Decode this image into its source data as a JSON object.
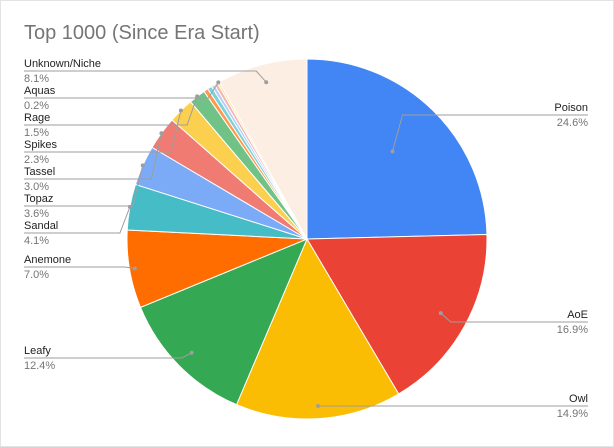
{
  "chart_data": {
    "type": "pie",
    "title": "Top 1000 (Since Era Start)",
    "slices": [
      {
        "label": "Poison",
        "value": 24.6,
        "pct_label": "24.6%",
        "color": "#4285f4"
      },
      {
        "label": "AoE",
        "value": 16.9,
        "pct_label": "16.9%",
        "color": "#ea4335"
      },
      {
        "label": "Owl",
        "value": 14.9,
        "pct_label": "14.9%",
        "color": "#fbbc04"
      },
      {
        "label": "Leafy",
        "value": 12.4,
        "pct_label": "12.4%",
        "color": "#34a853"
      },
      {
        "label": "Anemone",
        "value": 7.0,
        "pct_label": "7.0%",
        "color": "#ff6d01"
      },
      {
        "label": "Sandal",
        "value": 4.1,
        "pct_label": "4.1%",
        "color": "#46bdc6"
      },
      {
        "label": "Topaz",
        "value": 3.6,
        "pct_label": "3.6%",
        "color": "#7baaf7"
      },
      {
        "label": "Tassel",
        "value": 3.0,
        "pct_label": "3.0%",
        "color": "#f07b72"
      },
      {
        "label": "Spikes",
        "value": 2.3,
        "pct_label": "2.3%",
        "color": "#fcd04f"
      },
      {
        "label": "Rage",
        "value": 1.5,
        "pct_label": "1.5%",
        "color": "#71c287"
      },
      {
        "label": "",
        "value": 0.4,
        "pct_label": "",
        "color": "#ff994d"
      },
      {
        "label": "",
        "value": 0.4,
        "pct_label": "",
        "color": "#7ed1d7"
      },
      {
        "label": "",
        "value": 0.3,
        "pct_label": "",
        "color": "#b3cefb"
      },
      {
        "label": "",
        "value": 0.3,
        "pct_label": "",
        "color": "#f7b4ae"
      },
      {
        "label": "Aquas",
        "value": 0.2,
        "pct_label": "0.2%",
        "color": "#fde49b"
      },
      {
        "label": "Unknown/Niche",
        "value": 8.1,
        "pct_label": "8.1%",
        "color": "#fdeee4"
      }
    ],
    "legend": "none",
    "label_color": "#222222",
    "pct_color": "#757575"
  }
}
